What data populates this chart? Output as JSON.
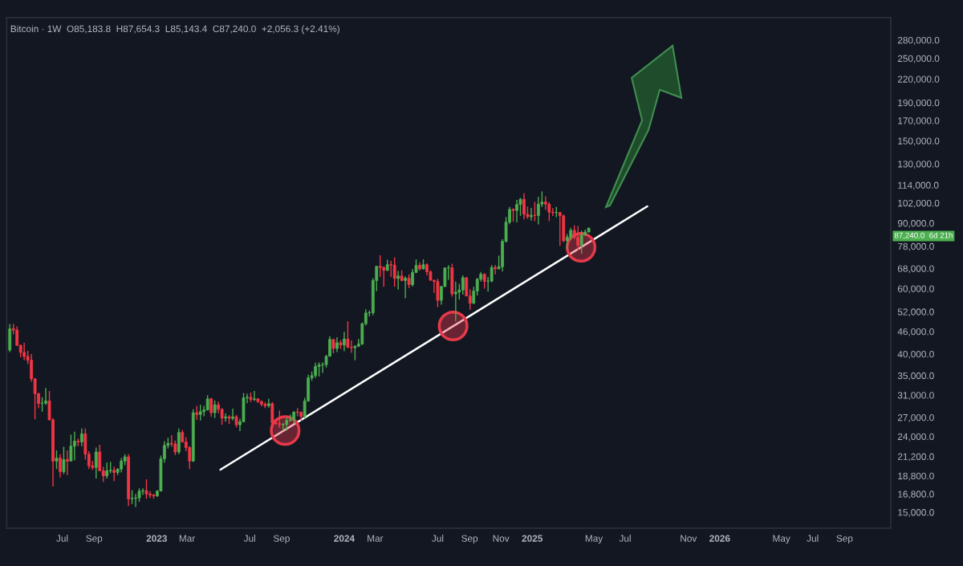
{
  "chart_data": {
    "type": "candlestick",
    "title": "Bitcoin · 1W  O85,183.8  H87,654.3  L85,143.4  C87,240.0  +2,056.3 (+2.41%)",
    "log": true,
    "grid": false,
    "ylim": [
      13600,
      322000
    ],
    "xlim": [
      "2022-03-15",
      "2026-11-30"
    ],
    "xticks": [
      {
        "value": "2022-07-01",
        "label": "Jul"
      },
      {
        "value": "2022-09-01",
        "label": "Sep"
      },
      {
        "value": "2023-01-01",
        "label": "2023"
      },
      {
        "value": "2023-03-01",
        "label": "Mar"
      },
      {
        "value": "2023-07-01",
        "label": "Jul"
      },
      {
        "value": "2023-09-01",
        "label": "Sep"
      },
      {
        "value": "2024-01-01",
        "label": "2024"
      },
      {
        "value": "2024-03-01",
        "label": "Mar"
      },
      {
        "value": "2024-07-01",
        "label": "Jul"
      },
      {
        "value": "2024-09-01",
        "label": "Sep"
      },
      {
        "value": "2024-11-01",
        "label": "Nov"
      },
      {
        "value": "2025-01-01",
        "label": "2025"
      },
      {
        "value": "2025-05-01",
        "label": "May"
      },
      {
        "value": "2025-07-01",
        "label": "Jul"
      },
      {
        "value": "2025-11-01",
        "label": "Nov"
      },
      {
        "value": "2026-01-01",
        "label": "2026"
      },
      {
        "value": "2026-05-01",
        "label": "May"
      },
      {
        "value": "2026-07-01",
        "label": "Jul"
      },
      {
        "value": "2026-09-01",
        "label": "Sep"
      }
    ],
    "yticks": [
      {
        "value": 15000,
        "label": "15,000.0"
      },
      {
        "value": 16800,
        "label": "16,800.0"
      },
      {
        "value": 18800,
        "label": "18,800.0"
      },
      {
        "value": 21200,
        "label": "21,200.0"
      },
      {
        "value": 24000,
        "label": "24,000.0"
      },
      {
        "value": 27000,
        "label": "27,000.0"
      },
      {
        "value": 31000,
        "label": "31,000.0"
      },
      {
        "value": 35000,
        "label": "35,000.0"
      },
      {
        "value": 40000,
        "label": "40,000.0"
      },
      {
        "value": 46000,
        "label": "46,000.0"
      },
      {
        "value": 52000,
        "label": "52,000.0"
      },
      {
        "value": 60000,
        "label": "60,000.0"
      },
      {
        "value": 68000,
        "label": "68,000.0"
      },
      {
        "value": 78000,
        "label": "78,000.0"
      },
      {
        "value": 90000,
        "label": "90,000.0"
      },
      {
        "value": 102000,
        "label": "102,000.0"
      },
      {
        "value": 114000,
        "label": "114,000.0"
      },
      {
        "value": 130000,
        "label": "130,000.0"
      },
      {
        "value": 150000,
        "label": "150,000.0"
      },
      {
        "value": 170000,
        "label": "170,000.0"
      },
      {
        "value": 190000,
        "label": "190,000.0"
      },
      {
        "value": 220000,
        "label": "220,000.0"
      },
      {
        "value": 250000,
        "label": "250,000.0"
      },
      {
        "value": 280000,
        "label": "280,000.0"
      }
    ],
    "annotations": [
      "87,240.0",
      "6d 21h"
    ],
    "series": [
      {
        "color": "#4caf50",
        "x": [
          "2022-03-21",
          "2022-05-23",
          "2022-05-30",
          "2022-06-20",
          "2022-07-04",
          "2022-07-18",
          "2022-07-25",
          "2022-08-08",
          "2022-09-05",
          "2022-09-26",
          "2022-10-03",
          "2022-10-17",
          "2022-10-24",
          "2022-10-31",
          "2022-11-14",
          "2022-11-21",
          "2022-11-28",
          "2022-12-05",
          "2023-01-02",
          "2023-01-09",
          "2023-01-16",
          "2023-01-23",
          "2023-02-13",
          "2023-03-13",
          "2023-03-27",
          "2023-04-03",
          "2023-04-10",
          "2023-04-24",
          "2023-05-15",
          "2023-05-29",
          "2023-06-12",
          "2023-06-19",
          "2023-06-26",
          "2023-07-10",
          "2023-08-07",
          "2023-09-04",
          "2023-09-11",
          "2023-09-18",
          "2023-09-25",
          "2023-10-16",
          "2023-10-23",
          "2023-10-30",
          "2023-11-06",
          "2023-11-13",
          "2023-11-20",
          "2023-11-27",
          "2023-12-04",
          "2023-12-18",
          "2024-01-01",
          "2024-01-22",
          "2024-01-29",
          "2024-02-05",
          "2024-02-12",
          "2024-02-19",
          "2024-02-26",
          "2024-03-04",
          "2024-03-25",
          "2024-04-15",
          "2024-04-29",
          "2024-05-13",
          "2024-05-20",
          "2024-06-03",
          "2024-07-08",
          "2024-07-15",
          "2024-07-22",
          "2024-08-05",
          "2024-08-12",
          "2024-08-19",
          "2024-09-09",
          "2024-09-16",
          "2024-09-23",
          "2024-10-07",
          "2024-10-14",
          "2024-10-28",
          "2024-11-04",
          "2024-11-11",
          "2024-11-18",
          "2024-12-02",
          "2024-12-09",
          "2024-12-30",
          "2025-01-13",
          "2025-01-20",
          "2025-02-17",
          "2025-03-10",
          "2025-03-17",
          "2025-04-07",
          "2025-04-14",
          "2025-04-21"
        ],
        "ohlc": [
          [
            41000,
            48200,
            40500,
            46800
          ],
          [
            29450,
            30600,
            28000,
            29500
          ],
          [
            29500,
            32400,
            29200,
            29900
          ],
          [
            20600,
            22000,
            19600,
            21000
          ],
          [
            19300,
            22500,
            19000,
            20800
          ],
          [
            20600,
            24300,
            20600,
            22600
          ],
          [
            22600,
            24700,
            20700,
            23300
          ],
          [
            23200,
            25200,
            22600,
            24400
          ],
          [
            19800,
            22400,
            18500,
            21800
          ],
          [
            18800,
            20400,
            18500,
            19400
          ],
          [
            19400,
            20500,
            19100,
            19450
          ],
          [
            19200,
            19700,
            18900,
            19600
          ],
          [
            19600,
            21000,
            19200,
            20600
          ],
          [
            20600,
            21500,
            20100,
            21150
          ],
          [
            16300,
            17200,
            15800,
            16350
          ],
          [
            16350,
            16800,
            15500,
            16400
          ],
          [
            16400,
            17400,
            16000,
            17100
          ],
          [
            17100,
            17400,
            16700,
            17150
          ],
          [
            16600,
            17200,
            16500,
            17100
          ],
          [
            17100,
            21300,
            17100,
            20900
          ],
          [
            20900,
            23300,
            20400,
            22700
          ],
          [
            22700,
            23800,
            22300,
            23000
          ],
          [
            21800,
            25200,
            21500,
            24600
          ],
          [
            20600,
            28400,
            20500,
            27800
          ],
          [
            27500,
            29200,
            26500,
            28000
          ],
          [
            28000,
            29000,
            27200,
            28300
          ],
          [
            28300,
            31000,
            28200,
            30300
          ],
          [
            27800,
            30000,
            26900,
            29200
          ],
          [
            26900,
            27700,
            26300,
            27100
          ],
          [
            26850,
            28500,
            26500,
            27100
          ],
          [
            25800,
            26800,
            24800,
            26300
          ],
          [
            26300,
            31400,
            26200,
            30500
          ],
          [
            30500,
            31300,
            29500,
            30600
          ],
          [
            30200,
            31800,
            29900,
            30300
          ],
          [
            29050,
            30300,
            28700,
            29400
          ],
          [
            25800,
            26100,
            24900,
            25850
          ],
          [
            25850,
            27000,
            24900,
            26500
          ],
          [
            26500,
            27500,
            26300,
            26600
          ],
          [
            26600,
            28000,
            26000,
            27950
          ],
          [
            27150,
            30500,
            26900,
            29900
          ],
          [
            29900,
            35200,
            29800,
            34500
          ],
          [
            34500,
            35900,
            33900,
            35000
          ],
          [
            35000,
            37900,
            34500,
            37050
          ],
          [
            37050,
            38000,
            34800,
            37400
          ],
          [
            37400,
            38000,
            35600,
            37450
          ],
          [
            37450,
            39800,
            36800,
            39450
          ],
          [
            39450,
            44700,
            39400,
            43800
          ],
          [
            41400,
            44400,
            40500,
            42900
          ],
          [
            42300,
            45900,
            40700,
            43900
          ],
          [
            41600,
            42200,
            38500,
            42000
          ],
          [
            42000,
            43900,
            41800,
            42600
          ],
          [
            42600,
            48600,
            42300,
            48300
          ],
          [
            48300,
            52800,
            47700,
            51600
          ],
          [
            51600,
            52400,
            50500,
            51700
          ],
          [
            51700,
            64000,
            50900,
            63100
          ],
          [
            63100,
            69000,
            59000,
            68900
          ],
          [
            67200,
            71800,
            66900,
            69600
          ],
          [
            63900,
            66900,
            59600,
            64900
          ],
          [
            63100,
            64700,
            56500,
            64000
          ],
          [
            61500,
            67700,
            60800,
            66300
          ],
          [
            66300,
            71900,
            66100,
            69300
          ],
          [
            67800,
            71900,
            67600,
            69600
          ],
          [
            55800,
            61000,
            54300,
            60800
          ],
          [
            60800,
            68400,
            60600,
            68200
          ],
          [
            68200,
            69400,
            63400,
            68250
          ],
          [
            58100,
            62700,
            49000,
            58700
          ],
          [
            58700,
            61800,
            56100,
            59500
          ],
          [
            59500,
            65100,
            57800,
            64200
          ],
          [
            54800,
            60700,
            54600,
            59100
          ],
          [
            59100,
            64100,
            57500,
            63600
          ],
          [
            63600,
            66500,
            62700,
            65600
          ],
          [
            62800,
            64500,
            58900,
            62900
          ],
          [
            62900,
            69400,
            62400,
            68400
          ],
          [
            67900,
            73600,
            67500,
            68700
          ],
          [
            68700,
            81500,
            66800,
            80400
          ],
          [
            80400,
            93500,
            79800,
            90600
          ],
          [
            90600,
            99600,
            89400,
            98000
          ],
          [
            97400,
            104000,
            90500,
            101100
          ],
          [
            101100,
            105300,
            94200,
            104400
          ],
          [
            93700,
            98900,
            91500,
            94500
          ],
          [
            94400,
            106000,
            89300,
            101300
          ],
          [
            101300,
            109600,
            99500,
            102600
          ],
          [
            96100,
            99500,
            93400,
            96200
          ],
          [
            80700,
            84200,
            76600,
            82600
          ],
          [
            82600,
            87500,
            81200,
            86100
          ],
          [
            78400,
            85900,
            74500,
            83800
          ],
          [
            83800,
            86500,
            83100,
            85183.8
          ],
          [
            85183.8,
            87654.3,
            85143.4,
            87240.0
          ]
        ]
      },
      {
        "color": "#f23645",
        "x": [
          "2022-03-28",
          "2022-04-04",
          "2022-04-11",
          "2022-04-18",
          "2022-04-25",
          "2022-05-02",
          "2022-05-09",
          "2022-05-16",
          "2022-06-06",
          "2022-06-13",
          "2022-06-27",
          "2022-07-11",
          "2022-08-01",
          "2022-08-15",
          "2022-08-22",
          "2022-08-29",
          "2022-09-12",
          "2022-09-19",
          "2022-10-10",
          "2022-11-07",
          "2022-12-12",
          "2022-12-19",
          "2022-12-26",
          "2023-01-30",
          "2023-02-06",
          "2023-02-20",
          "2023-02-27",
          "2023-03-06",
          "2023-03-20",
          "2023-04-17",
          "2023-05-01",
          "2023-05-08",
          "2023-05-22",
          "2023-06-05",
          "2023-07-03",
          "2023-07-17",
          "2023-07-24",
          "2023-07-31",
          "2023-08-14",
          "2023-08-21",
          "2023-08-28",
          "2023-10-02",
          "2023-10-09",
          "2023-12-11",
          "2023-12-25",
          "2024-01-08",
          "2024-01-15",
          "2024-03-11",
          "2024-03-18",
          "2024-04-01",
          "2024-04-08",
          "2024-04-22",
          "2024-05-06",
          "2024-05-27",
          "2024-06-10",
          "2024-06-17",
          "2024-06-24",
          "2024-07-01",
          "2024-07-29",
          "2024-08-26",
          "2024-09-02",
          "2024-09-30",
          "2024-10-21",
          "2024-11-25",
          "2024-12-16",
          "2024-12-23",
          "2025-01-06",
          "2025-01-27",
          "2025-02-03",
          "2025-02-10",
          "2025-02-24",
          "2025-03-03",
          "2025-03-24",
          "2025-03-31"
        ],
        "ohlc": [
          [
            46800,
            48200,
            45200,
            46400
          ],
          [
            46400,
            47500,
            42100,
            42200
          ],
          [
            42200,
            42400,
            39200,
            40400
          ],
          [
            40400,
            42900,
            38500,
            39400
          ],
          [
            39400,
            40800,
            37600,
            38500
          ],
          [
            38500,
            40000,
            33700,
            34300
          ],
          [
            34300,
            34400,
            26700,
            31300
          ],
          [
            31300,
            31400,
            28600,
            29450
          ],
          [
            29900,
            31800,
            26500,
            26600
          ],
          [
            26600,
            26900,
            17600,
            20600
          ],
          [
            21000,
            21500,
            18600,
            19300
          ],
          [
            20800,
            22000,
            18900,
            20600
          ],
          [
            23300,
            23700,
            22600,
            23200
          ],
          [
            24400,
            25200,
            20800,
            21500
          ],
          [
            21500,
            21900,
            19600,
            20000
          ],
          [
            20000,
            20600,
            19500,
            19800
          ],
          [
            21800,
            22800,
            19400,
            19400
          ],
          [
            19400,
            19900,
            18100,
            18800
          ],
          [
            19450,
            19900,
            18200,
            19200
          ],
          [
            21150,
            21500,
            15600,
            16300
          ],
          [
            17150,
            18400,
            16300,
            16800
          ],
          [
            16800,
            17100,
            16400,
            16700
          ],
          [
            16700,
            16800,
            16300,
            16600
          ],
          [
            23000,
            24200,
            22500,
            22900
          ],
          [
            22900,
            23400,
            21400,
            21800
          ],
          [
            24600,
            25000,
            23100,
            23200
          ],
          [
            23200,
            23900,
            21900,
            22400
          ],
          [
            22400,
            22600,
            19600,
            20600
          ],
          [
            27800,
            29000,
            26600,
            27500
          ],
          [
            30300,
            30500,
            27100,
            27800
          ],
          [
            29200,
            29800,
            27700,
            28400
          ],
          [
            28400,
            28600,
            25800,
            26900
          ],
          [
            27100,
            27400,
            25900,
            26850
          ],
          [
            27100,
            27400,
            25400,
            25800
          ],
          [
            30600,
            31500,
            29700,
            30200
          ],
          [
            30300,
            30400,
            29500,
            29800
          ],
          [
            29800,
            30000,
            28900,
            29300
          ],
          [
            29300,
            29700,
            28600,
            29050
          ],
          [
            29400,
            29700,
            25200,
            26100
          ],
          [
            26100,
            26800,
            25800,
            26000
          ],
          [
            26000,
            28200,
            25300,
            25800
          ],
          [
            27950,
            28600,
            27200,
            27900
          ],
          [
            27900,
            28000,
            26500,
            27150
          ],
          [
            43800,
            43800,
            40200,
            41400
          ],
          [
            42900,
            43600,
            41300,
            42300
          ],
          [
            43900,
            49000,
            41500,
            41700
          ],
          [
            41700,
            43500,
            40300,
            41600
          ],
          [
            68900,
            73800,
            64500,
            68400
          ],
          [
            68400,
            68900,
            60700,
            67200
          ],
          [
            69600,
            71300,
            64500,
            69400
          ],
          [
            69400,
            72800,
            60700,
            63900
          ],
          [
            64900,
            67200,
            62800,
            63100
          ],
          [
            64000,
            65500,
            60200,
            61500
          ],
          [
            69300,
            70600,
            67100,
            67800
          ],
          [
            69600,
            70200,
            65100,
            66600
          ],
          [
            66600,
            67200,
            63000,
            63200
          ],
          [
            63200,
            63400,
            58400,
            62700
          ],
          [
            62700,
            63800,
            53500,
            55800
          ],
          [
            68250,
            70000,
            57100,
            58100
          ],
          [
            64200,
            64500,
            57200,
            57300
          ],
          [
            57300,
            59800,
            52600,
            54800
          ],
          [
            65600,
            66000,
            60000,
            62800
          ],
          [
            68400,
            69500,
            65500,
            67900
          ],
          [
            98000,
            98700,
            90800,
            97400
          ],
          [
            104400,
            108400,
            92200,
            95100
          ],
          [
            95100,
            99800,
            92500,
            93700
          ],
          [
            94500,
            102700,
            91200,
            94400
          ],
          [
            102600,
            106400,
            97800,
            101300
          ],
          [
            101300,
            102500,
            91200,
            96400
          ],
          [
            96400,
            98800,
            94100,
            96100
          ],
          [
            96200,
            96500,
            78200,
            94200
          ],
          [
            94200,
            95000,
            80000,
            80700
          ],
          [
            86100,
            88800,
            81600,
            82400
          ],
          [
            82400,
            88500,
            76200,
            78400
          ]
        ]
      },
      {
        "type": "line",
        "color": "#ffffff",
        "x": [
          "2023-05-05",
          "2025-08-13"
        ],
        "values": [
          19530,
          99900
        ]
      },
      {
        "type": "scatter",
        "color": "#e8394a",
        "marker": "circle",
        "x": [
          "2023-09-08",
          "2024-07-31",
          "2025-04-06"
        ],
        "values": [
          24900,
          47600,
          77500
        ]
      }
    ]
  }
}
